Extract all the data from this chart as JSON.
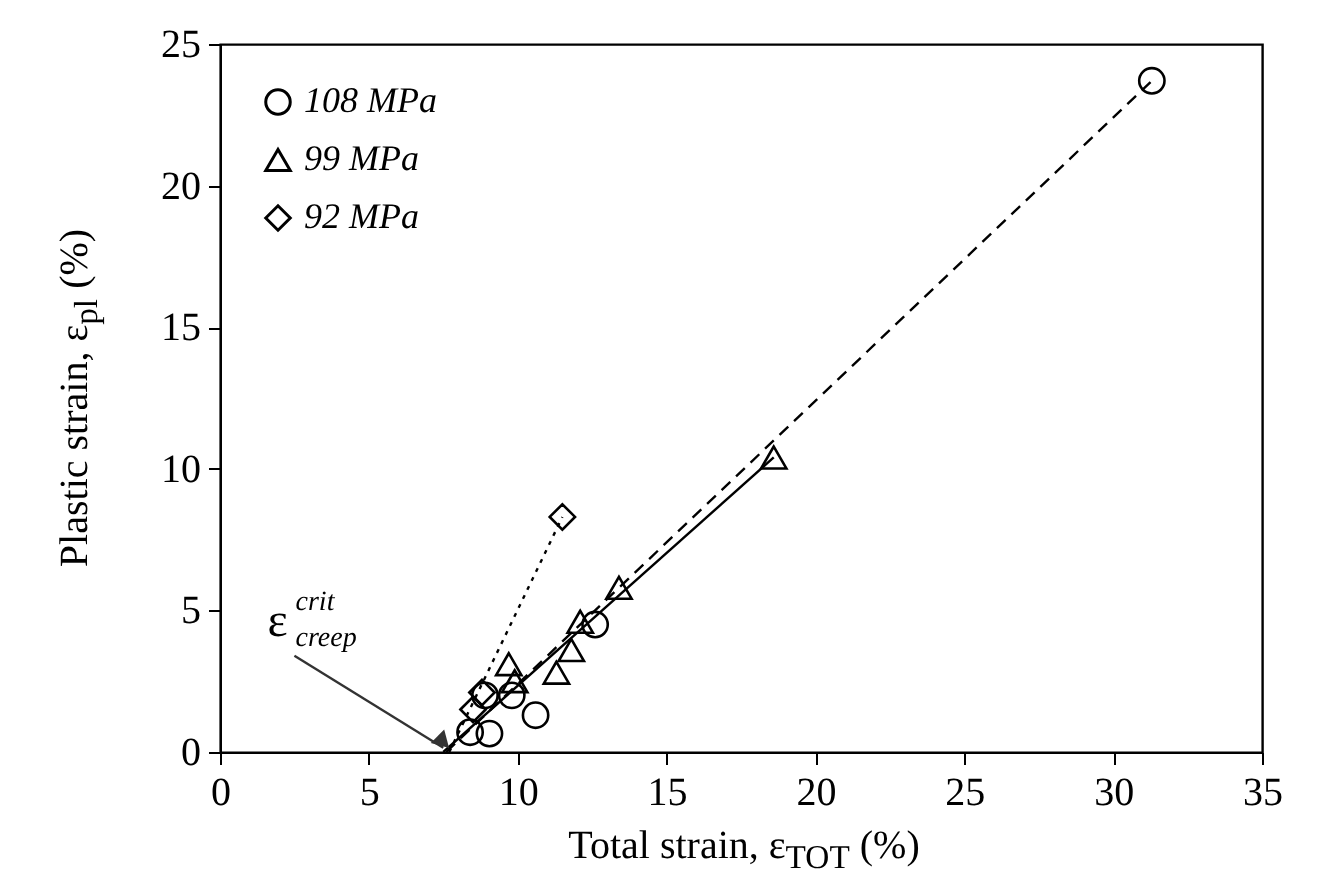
{
  "chart_data": {
    "type": "scatter",
    "xlabel": "Total strain, ε$_{TOT}$ (%)",
    "ylabel": "Plastic strain, ε$_{pl}$ (%)",
    "xlim": [
      0,
      35
    ],
    "xticks": [
      0,
      5,
      10,
      15,
      20,
      25,
      30,
      35
    ],
    "ylim": [
      0,
      25
    ],
    "yticks": [
      0,
      5,
      10,
      15,
      20,
      25
    ],
    "legend": "top left",
    "grid": false,
    "series": [
      {
        "name": "108 MPa",
        "color": "#000000",
        "marker": "circle",
        "x": [
          8.4,
          9.05,
          8.9,
          9.8,
          10.6,
          12.6,
          31.3
        ],
        "values": [
          0.7,
          0.65,
          2.0,
          2.0,
          1.3,
          4.5,
          23.7
        ]
      },
      {
        "name": "99 MPa",
        "color": "#000000",
        "marker": "triangle",
        "x": [
          9.7,
          9.9,
          11.3,
          11.8,
          12.1,
          13.4,
          18.6
        ],
        "values": [
          3.1,
          2.5,
          2.8,
          3.6,
          4.6,
          5.8,
          10.4
        ]
      },
      {
        "name": "92 MPa",
        "color": "#000000",
        "marker": "diamond",
        "x": [
          8.5,
          8.8,
          11.5
        ],
        "values": [
          1.5,
          2.1,
          8.3
        ]
      },
      {
        "type": "line",
        "color": "#000000",
        "line_style": "dashed",
        "x": [
          7.6,
          31.3
        ],
        "values": [
          0,
          23.7
        ]
      },
      {
        "type": "line",
        "color": "#000000",
        "line_style": "solid",
        "x": [
          7.5,
          18.6
        ],
        "values": [
          0,
          10.4
        ]
      },
      {
        "type": "line",
        "color": "#000000",
        "line_style": "dotted",
        "x": [
          7.7,
          11.5
        ],
        "values": [
          0,
          8.3
        ]
      }
    ],
    "annotations": [
      {
        "text": "ε$^{crit}$$_{creep}$",
        "x": 7.5,
        "y": 0
      }
    ]
  }
}
